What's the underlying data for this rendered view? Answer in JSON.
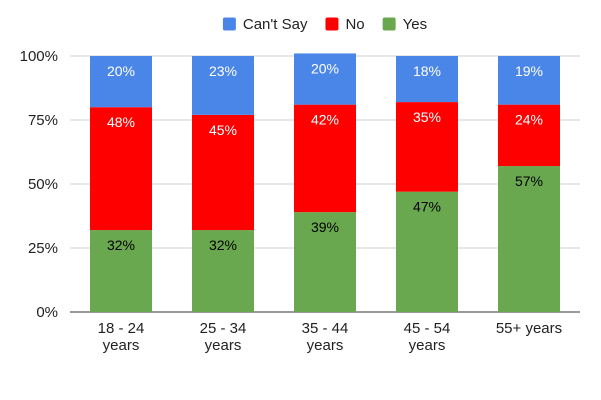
{
  "chart_data": {
    "type": "bar",
    "stacked": true,
    "categories": [
      [
        "18 - 24",
        "years"
      ],
      [
        "25 - 34",
        "years"
      ],
      [
        "35 - 44",
        "years"
      ],
      [
        "45 - 54",
        "years"
      ],
      [
        "55+ years"
      ]
    ],
    "series": [
      {
        "name": "Yes",
        "color": "#6aa84f",
        "label_color": "#000000",
        "values": [
          32,
          32,
          39,
          47,
          57
        ]
      },
      {
        "name": "No",
        "color": "#ff0000",
        "label_color": "#ffffff",
        "values": [
          48,
          45,
          42,
          35,
          24
        ]
      },
      {
        "name": "Can't Say",
        "color": "#4a86e8",
        "label_color": "#ffffff",
        "values": [
          20,
          23,
          20,
          18,
          19
        ]
      }
    ],
    "legend_order": [
      "Can't Say",
      "No",
      "Yes"
    ],
    "legend_position": "top",
    "y_ticks": [
      "0%",
      "25%",
      "50%",
      "75%",
      "100%"
    ],
    "ylim": [
      0,
      100
    ],
    "grid": true
  }
}
